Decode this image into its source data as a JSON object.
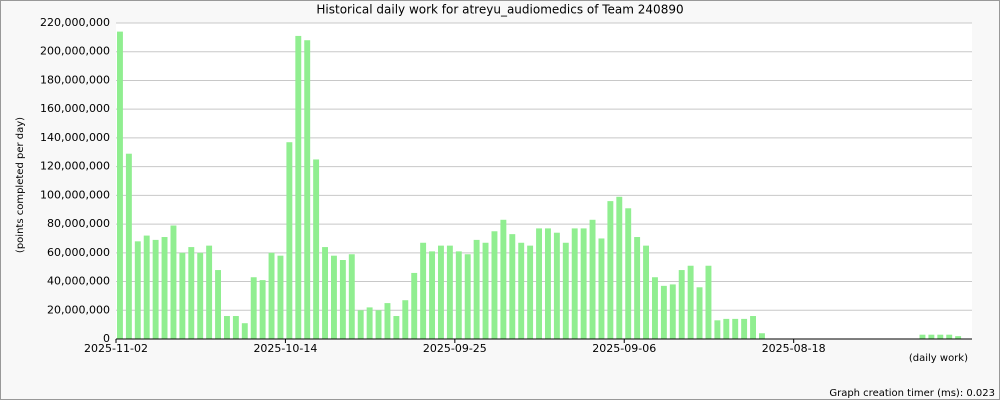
{
  "chart_data": {
    "type": "bar",
    "title": "Historical daily work for atreyu_audiomedics of Team 240890",
    "y_label": "(points completed per day)",
    "x_label": "(daily work)",
    "footer": "Graph creation timer (ms): 0.023",
    "color": "#90ee90",
    "grid": true,
    "categories": [
      "2025-11-02",
      null,
      null,
      null,
      null,
      null,
      null,
      null,
      null,
      null,
      null,
      null,
      null,
      null,
      null,
      null,
      null,
      null,
      null,
      "2025-10-14",
      null,
      null,
      null,
      null,
      null,
      null,
      null,
      null,
      null,
      null,
      null,
      null,
      null,
      null,
      null,
      null,
      null,
      null,
      "2025-09-25",
      null,
      null,
      null,
      null,
      null,
      null,
      null,
      null,
      null,
      null,
      null,
      null,
      null,
      null,
      null,
      null,
      null,
      null,
      "2025-09-06",
      null,
      null,
      null,
      null,
      null,
      null,
      null,
      null,
      null,
      null,
      null,
      null,
      null,
      null,
      null,
      null,
      null,
      null,
      "2025-08-18",
      null,
      null,
      null,
      null,
      null,
      null,
      null,
      null,
      null,
      null,
      null,
      null,
      null,
      null,
      null,
      null,
      null,
      null,
      null
    ],
    "values": [
      214000000,
      129000000,
      68000000,
      72000000,
      69000000,
      71000000,
      79000000,
      60000000,
      64000000,
      60000000,
      65000000,
      48000000,
      16000000,
      16000000,
      11000000,
      43000000,
      41000000,
      60000000,
      58000000,
      137000000,
      211000000,
      208000000,
      125000000,
      64000000,
      58000000,
      55000000,
      59000000,
      20000000,
      22000000,
      20000000,
      25000000,
      16000000,
      27000000,
      46000000,
      67000000,
      61000000,
      65000000,
      65000000,
      61000000,
      59000000,
      69000000,
      67000000,
      75000000,
      83000000,
      73000000,
      67000000,
      65000000,
      77000000,
      77000000,
      74000000,
      67000000,
      77000000,
      77000000,
      83000000,
      70000000,
      96000000,
      99000000,
      91000000,
      71000000,
      65000000,
      43000000,
      37000000,
      38000000,
      48000000,
      51000000,
      36000000,
      51000000,
      13000000,
      14000000,
      14000000,
      14000000,
      16000000,
      4000000,
      0,
      0,
      0,
      0,
      0,
      0,
      0,
      0,
      0,
      0,
      0,
      0,
      0,
      0,
      0,
      0,
      0,
      3000000,
      3000000,
      3000000,
      3000000,
      2000000,
      0
    ],
    "ylim": [
      0,
      220000000
    ],
    "yticks": [
      0,
      {
        "value": 20000000,
        "label": "20,000,000"
      },
      {
        "value": 40000000,
        "label": "40,000,000"
      },
      {
        "value": 60000000,
        "label": "60,000,000"
      },
      {
        "value": 80000000,
        "label": "80,000,000"
      },
      {
        "value": 100000000,
        "label": "100,000,000"
      },
      {
        "value": 120000000,
        "label": "120,000,000"
      },
      {
        "value": 140000000,
        "label": "140,000,000"
      },
      {
        "value": 160000000,
        "label": "160,000,000"
      },
      {
        "value": 180000000,
        "label": "180,000,000"
      },
      {
        "value": 200000000,
        "label": "200,000,000"
      },
      {
        "value": 220000000,
        "label": "220,000,000"
      }
    ]
  }
}
